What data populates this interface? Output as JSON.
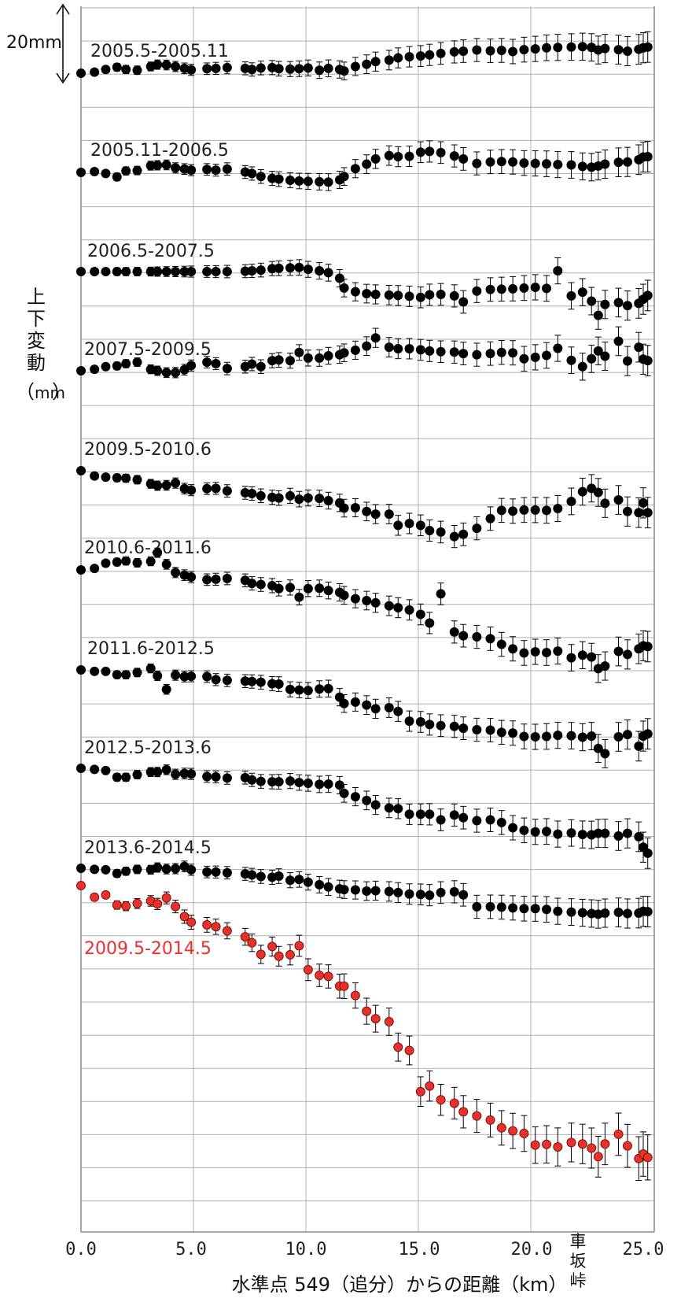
{
  "chart_data": {
    "type": "scatter",
    "xlabel": "水準点 549（追分）からの距離（km）",
    "ylabel_chars": [
      "上",
      "下",
      "変",
      "動",
      "（",
      "mm",
      "）"
    ],
    "scale_bar_label": "20mm",
    "x_ticks": [
      "0.0",
      "5.0",
      "10.0",
      "15.0",
      "20.0",
      "25.0"
    ],
    "xlim": [
      0,
      25.3
    ],
    "annotation_chars": [
      "車",
      "坂",
      "峠"
    ],
    "annotation_x": 23.0,
    "colors": {
      "black_series": "#000000",
      "red_series": "#e8312a",
      "grid": "#b0b0b0"
    },
    "x": [
      0.0,
      0.6,
      1.1,
      1.6,
      2.0,
      2.5,
      3.1,
      3.4,
      3.8,
      4.2,
      4.6,
      4.9,
      5.6,
      6.0,
      6.5,
      7.3,
      7.6,
      8.0,
      8.5,
      8.8,
      9.3,
      9.7,
      10.1,
      10.6,
      11.0,
      11.5,
      11.7,
      12.2,
      12.7,
      13.1,
      13.7,
      14.1,
      14.6,
      15.1,
      15.5,
      16.0,
      16.6,
      17.0,
      17.6,
      18.2,
      18.7,
      19.2,
      19.7,
      20.2,
      20.7,
      21.2,
      21.8,
      22.3,
      22.7,
      23.0,
      23.3,
      23.9,
      24.3,
      24.8,
      25.0,
      25.2
    ],
    "series": [
      {
        "name": "2005.5-2005.11",
        "label_color": "#222222",
        "color": "#000000",
        "has_errorbars": true,
        "values": [
          0,
          0.3,
          1.0,
          1.6,
          1.0,
          0.8,
          1.8,
          2.3,
          2.2,
          1.8,
          1.3,
          0.9,
          1.2,
          1.3,
          1.5,
          1.3,
          1.0,
          1.4,
          1.5,
          1.2,
          1.1,
          1.2,
          1.4,
          0.8,
          1.3,
          1.0,
          0.6,
          1.8,
          2.4,
          3.1,
          3.5,
          4.1,
          4.4,
          4.6,
          4.9,
          5.3,
          5.7,
          5.9,
          6.2,
          6.0,
          6.1,
          5.8,
          6.3,
          6.5,
          6.8,
          6.9,
          7.0,
          7.1,
          6.9,
          6.2,
          6.6,
          6.3,
          5.9,
          6.4,
          6.8,
          7.0
        ]
      },
      {
        "name": "2005.11-2006.5",
        "label_color": "#222222",
        "color": "#000000",
        "has_errorbars": true,
        "values": [
          0,
          0.2,
          -0.3,
          -1.2,
          0.4,
          0.5,
          1.8,
          1.9,
          2.0,
          1.2,
          0.9,
          0.6,
          0.8,
          0.6,
          0.9,
          0.1,
          -0.3,
          -1.1,
          -1.6,
          -1.8,
          -2.1,
          -2.3,
          -2.4,
          -2.5,
          -2.6,
          -2.0,
          -1.1,
          1.0,
          2.2,
          3.6,
          4.5,
          4.2,
          4.3,
          5.4,
          5.6,
          5.3,
          4.4,
          3.6,
          2.4,
          2.8,
          2.9,
          2.8,
          2.5,
          2.4,
          2.3,
          2.1,
          2.0,
          1.6,
          1.4,
          1.7,
          2.2,
          2.7,
          2.8,
          3.4,
          4.1,
          4.2
        ]
      },
      {
        "name": "2006.5-2007.5",
        "label_color": "#222222",
        "color": "#000000",
        "has_errorbars": true,
        "values": [
          0,
          0,
          0,
          0,
          0,
          0,
          0,
          0,
          0,
          0,
          0,
          0,
          0,
          0,
          0,
          0.1,
          0.2,
          0.4,
          0.8,
          0.9,
          1.0,
          1.1,
          0.6,
          0.2,
          -0.3,
          -1.8,
          -4.4,
          -5.4,
          -5.9,
          -6.1,
          -6.3,
          -6.4,
          -6.6,
          -6.9,
          -6.2,
          -6.1,
          -6.5,
          -8.1,
          -5.2,
          -4.8,
          -4.7,
          -4.6,
          -4.4,
          -4.2,
          -4.5,
          0.2,
          -6.5,
          -5.5,
          -7.9,
          -11.7,
          -8.8,
          -8.3,
          -9.1,
          -8.5,
          -7.4,
          -6.4
        ]
      },
      {
        "name": "2007.5-2009.5",
        "label_color": "#222222",
        "color": "#000000",
        "has_errorbars": true,
        "values": [
          0,
          0.4,
          1.1,
          1.3,
          1.9,
          2.3,
          0.4,
          0.0,
          -0.5,
          -0.5,
          0.3,
          1.4,
          2.3,
          1.9,
          0.6,
          1.1,
          1.8,
          1.1,
          2.7,
          2.9,
          2.7,
          4.9,
          3.4,
          3.4,
          4.0,
          4.3,
          4.8,
          5.5,
          6.6,
          8.8,
          6.3,
          5.9,
          5.9,
          5.6,
          5.3,
          5.1,
          5.0,
          4.6,
          4.3,
          4.6,
          4.9,
          4.8,
          3.2,
          3.6,
          4.1,
          6.0,
          2.8,
          1.1,
          3.2,
          5.3,
          3.9,
          7.9,
          2.6,
          6.3,
          3.1,
          2.7
        ]
      },
      {
        "name": "2009.5-2010.6",
        "label_color": "#222222",
        "color": "#000000",
        "has_errorbars": true,
        "values": [
          0,
          -1.4,
          -1.7,
          -1.9,
          -2.0,
          -2.4,
          -3.5,
          -4.0,
          -3.9,
          -3.3,
          -4.8,
          -5.2,
          -4.8,
          -4.7,
          -5.4,
          -5.9,
          -6.1,
          -6.7,
          -7.1,
          -7.3,
          -6.7,
          -7.6,
          -7.3,
          -7.4,
          -8.0,
          -8.6,
          -10.0,
          -9.9,
          -10.9,
          -11.6,
          -11.6,
          -14.6,
          -14.1,
          -14.6,
          -16.0,
          -16.4,
          -17.6,
          -17.0,
          -15.4,
          -12.8,
          -10.6,
          -10.8,
          -10.5,
          -10.5,
          -10.6,
          -10.1,
          -8.2,
          -5.6,
          -4.7,
          -5.8,
          -8.7,
          -7.8,
          -10.9,
          -11.2,
          -8.6,
          -11.2
        ]
      },
      {
        "name": "2010.6-2011.6",
        "label_color": "#222222",
        "color": "#000000",
        "has_errorbars": true,
        "values": [
          0,
          0.4,
          1.8,
          2.1,
          2.4,
          1.9,
          2.3,
          4.6,
          1.5,
          -0.7,
          -1.4,
          -1.9,
          -2.6,
          -2.5,
          -2.3,
          -2.8,
          -3.6,
          -3.9,
          -4.2,
          -5.0,
          -4.7,
          -7.3,
          -5.0,
          -4.9,
          -5.5,
          -6.0,
          -6.8,
          -7.7,
          -8.2,
          -8.8,
          -9.6,
          -10.1,
          -10.7,
          -11.9,
          -14.2,
          -6.4,
          -16.6,
          -17.6,
          -17.9,
          -18.4,
          -19.9,
          -21.1,
          -22.2,
          -21.9,
          -22.1,
          -21.7,
          -23.5,
          -22.8,
          -23.3,
          -26.4,
          -25.7,
          -21.8,
          -22.6,
          -21.1,
          -20.3,
          -20.5
        ]
      },
      {
        "name": "2011.6-2012.5",
        "label_color": "#222222",
        "color": "#000000",
        "has_errorbars": true,
        "values": [
          0,
          -0.4,
          -0.4,
          -1.3,
          -1.3,
          -0.7,
          0.4,
          -1.6,
          -5.2,
          -1.4,
          -1.8,
          -1.7,
          -1.8,
          -2.6,
          -2.8,
          -3.0,
          -3.1,
          -3.3,
          -3.7,
          -3.8,
          -5.2,
          -5.4,
          -5.5,
          -5.1,
          -5.0,
          -7.3,
          -9.0,
          -8.6,
          -9.4,
          -10.4,
          -10.1,
          -11.1,
          -13.7,
          -13.9,
          -14.6,
          -14.9,
          -15.1,
          -15.6,
          -16.0,
          -16.1,
          -16.7,
          -16.9,
          -17.8,
          -17.9,
          -17.8,
          -17.5,
          -17.6,
          -18.0,
          -17.7,
          -21.0,
          -22.4,
          -17.9,
          -17.3,
          -20.4,
          -17.7,
          -17.1
        ]
      },
      {
        "name": "2012.5-2013.6",
        "label_color": "#222222",
        "color": "#000000",
        "has_errorbars": true,
        "values": [
          0,
          -0.3,
          -0.6,
          -2.4,
          -2.4,
          -1.7,
          -1.0,
          -1.0,
          -0.4,
          -1.6,
          -1.4,
          -1.5,
          -2.2,
          -2.3,
          -2.6,
          -2.5,
          -3.1,
          -3.5,
          -3.6,
          -3.6,
          -3.4,
          -3.8,
          -4.0,
          -4.3,
          -4.2,
          -4.5,
          -6.7,
          -7.6,
          -8.6,
          -9.8,
          -10.6,
          -10.8,
          -12.3,
          -12.3,
          -12.3,
          -13.8,
          -12.5,
          -13.2,
          -14.0,
          -13.8,
          -14.5,
          -15.9,
          -16.6,
          -17.0,
          -16.9,
          -17.6,
          -17.3,
          -17.7,
          -17.8,
          -17.4,
          -17.4,
          -18.1,
          -17.4,
          -18.3,
          -21.1,
          -22.7
        ]
      },
      {
        "name": "2013.6-2014.5",
        "label_color": "#222222",
        "color": "#000000",
        "has_errorbars": true,
        "values": [
          0,
          -0.3,
          -0.4,
          -1.4,
          -0.8,
          -0.3,
          -0.4,
          0.2,
          -0.2,
          -0.1,
          0.5,
          -0.4,
          -1.0,
          -1.0,
          -1.2,
          -1.5,
          -1.8,
          -2.2,
          -2.4,
          -2.1,
          -3.2,
          -3.0,
          -3.7,
          -4.4,
          -5.0,
          -5.5,
          -5.7,
          -5.8,
          -6.1,
          -6.0,
          -6.2,
          -6.5,
          -6.9,
          -7.0,
          -7.2,
          -6.5,
          -6.3,
          -7.1,
          -10.3,
          -10.3,
          -10.4,
          -10.6,
          -10.8,
          -10.8,
          -11.0,
          -11.5,
          -11.7,
          -11.9,
          -12.1,
          -12.3,
          -12.0,
          -11.8,
          -12.1,
          -12.0,
          -11.5,
          -11.6
        ]
      },
      {
        "name": "2009.5-2014.5",
        "label_color": "#e8312a",
        "color": "#e8312a",
        "has_errorbars": true,
        "values": [
          0,
          -3.1,
          -2.5,
          -5.2,
          -5.5,
          -4.8,
          -4.1,
          -4.9,
          -3.3,
          -5.6,
          -8.3,
          -9.8,
          -10.5,
          -11.0,
          -12.1,
          -13.7,
          -15.3,
          -18.4,
          -16.3,
          -18.9,
          -18.5,
          -16.1,
          -22.5,
          -24.0,
          -24.3,
          -26.9,
          -26.9,
          -29.4,
          -33.6,
          -35.6,
          -36.4,
          -43.2,
          -44.1,
          -55.1,
          -53.6,
          -57.3,
          -58.2,
          -60.5,
          -61.6,
          -62.7,
          -64.8,
          -65.6,
          -66.3,
          -69.4,
          -69.2,
          -69.9,
          -68.7,
          -69.1,
          -70.2,
          -72.5,
          -69.1,
          -66.5,
          -69.6,
          -73.0,
          -71.8,
          -72.7
        ]
      }
    ]
  }
}
